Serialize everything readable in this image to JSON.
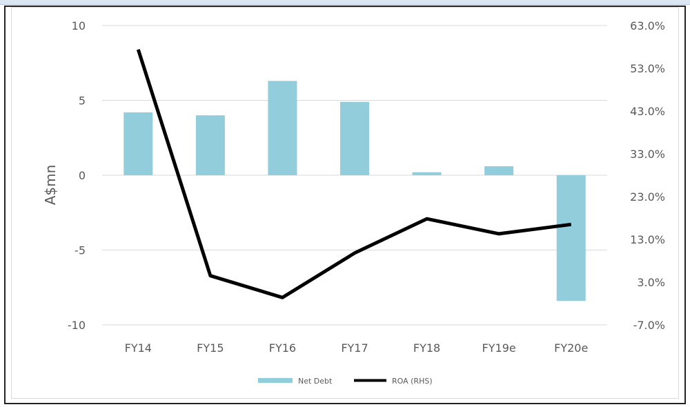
{
  "chart_data": {
    "type": "bar+line",
    "categories": [
      "FY14",
      "FY15",
      "FY16",
      "FY17",
      "FY18",
      "FY19e",
      "FY20e"
    ],
    "ylabel": "A$mn",
    "ylim": [
      -10,
      10
    ],
    "y_ticks": [
      10,
      5,
      0,
      -5,
      -10
    ],
    "y2lim": [
      -7,
      63
    ],
    "y2_ticks": [
      "63.0%",
      "53.0%",
      "43.0%",
      "33.0%",
      "23.0%",
      "13.0%",
      "3.0%",
      "-7.0%"
    ],
    "series": [
      {
        "name": "Net Debt",
        "type": "bar",
        "axis": "left",
        "color": "#92cddc",
        "values": [
          4.2,
          4.0,
          6.3,
          4.9,
          0.2,
          0.6,
          -8.4
        ]
      },
      {
        "name": "ROA (RHS)",
        "type": "line",
        "axis": "right",
        "color": "#000000",
        "values": [
          57.4,
          4.5,
          -0.6,
          9.8,
          17.8,
          14.3,
          16.5
        ]
      }
    ],
    "legend_position": "bottom-center",
    "grid": true
  }
}
